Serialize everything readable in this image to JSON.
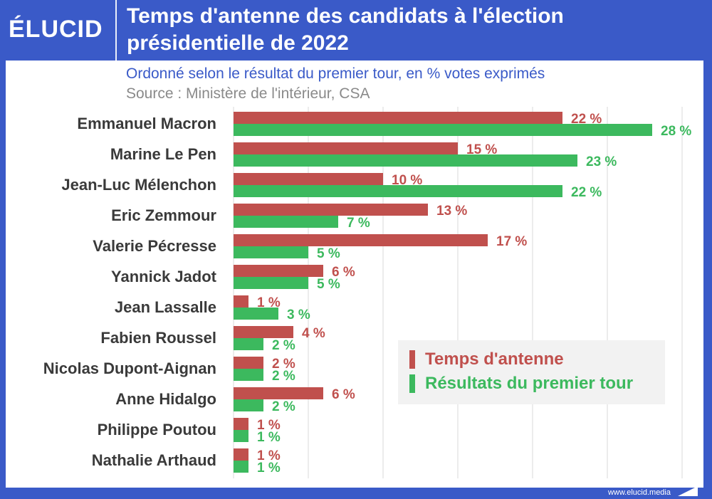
{
  "header": {
    "logo": "ÉLUCID",
    "title": "Temps d'antenne des candidats à l'élection présidentielle de 2022"
  },
  "subtitle": "Ordonné selon le résultat du premier tour, en % votes exprimés",
  "source": "Source : Ministère de l'intérieur, CSA",
  "footer": {
    "url": "www.elucid.media"
  },
  "colors": {
    "brand": "#3a5ac8",
    "temps": "#c0504d",
    "resultats": "#3cb95e"
  },
  "legend": [
    {
      "label": "Temps d'antenne",
      "color": "#c0504d"
    },
    {
      "label": "Résultats du premier tour",
      "color": "#3cb95e"
    }
  ],
  "chart_data": {
    "type": "bar",
    "orientation": "horizontal",
    "categories": [
      "Emmanuel Macron",
      "Marine Le Pen",
      "Jean-Luc Mélenchon",
      "Eric Zemmour",
      "Valerie Pécresse",
      "Yannick Jadot",
      "Jean Lassalle",
      "Fabien Roussel",
      "Nicolas Dupont-Aignan",
      "Anne Hidalgo",
      "Philippe Poutou",
      "Nathalie Arthaud"
    ],
    "series": [
      {
        "name": "Temps d'antenne",
        "values": [
          22,
          15,
          10,
          13,
          17,
          6,
          1,
          4,
          2,
          6,
          1,
          1
        ],
        "labels": [
          "22 %",
          "15 %",
          "10 %",
          "13 %",
          "17 %",
          "6 %",
          "1 %",
          "4 %",
          "2 %",
          "6 %",
          "1 %",
          "1 %"
        ]
      },
      {
        "name": "Résultats du premier tour",
        "values": [
          28,
          23,
          22,
          7,
          5,
          5,
          3,
          2,
          2,
          2,
          1,
          1
        ],
        "labels": [
          "28 %",
          "23 %",
          "22 %",
          "7 %",
          "5 %",
          "5 %",
          "3 %",
          "2 %",
          "2 %",
          "2 %",
          "1 %",
          "1 %"
        ]
      }
    ],
    "xlim": [
      0,
      30
    ],
    "grid": true,
    "legend_position": "bottom-right"
  }
}
